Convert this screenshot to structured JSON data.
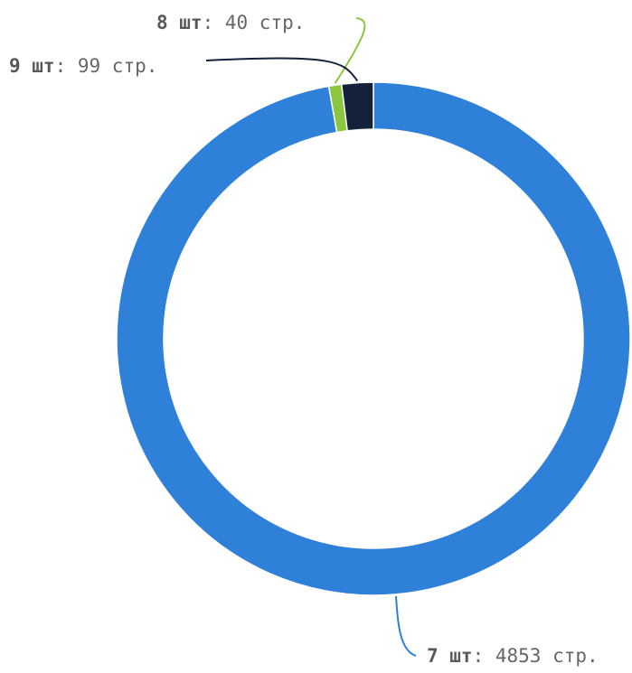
{
  "chart_data": {
    "type": "pie",
    "variant": "donut",
    "slices": [
      {
        "label": "7 шт",
        "name": "7 шт",
        "value": 4853,
        "value_text": "4853 стр.",
        "color": "#2f80d9"
      },
      {
        "label": "8 шт",
        "name": "8 шт",
        "value": 40,
        "value_text": "40 стр.",
        "color": "#8cc63f"
      },
      {
        "label": "9 шт",
        "name": "9 шт",
        "value": 99,
        "value_text": "99 стр.",
        "color": "#13223a"
      }
    ],
    "label_separator": ": ",
    "legend": "none"
  }
}
